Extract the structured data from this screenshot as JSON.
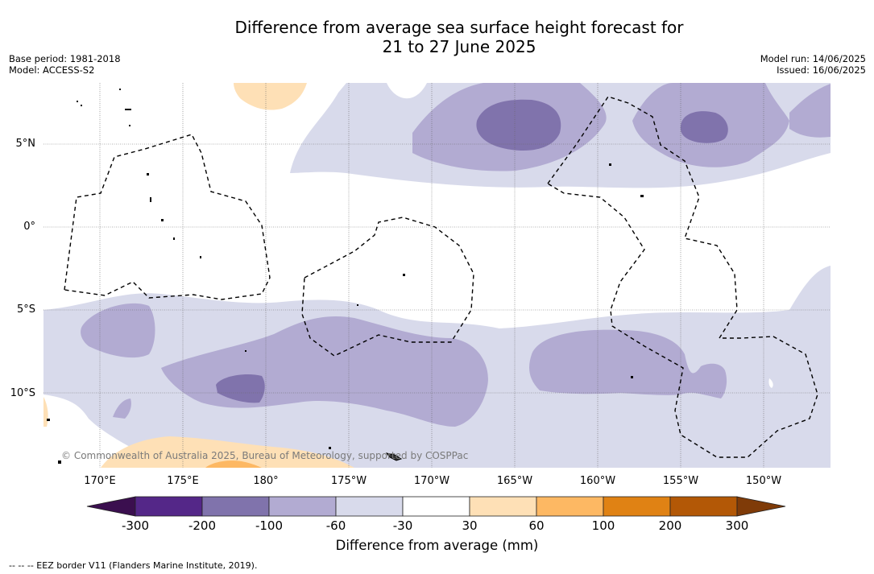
{
  "title": "Difference from average sea surface height forecast for",
  "subtitle": "21 to 27 June 2025",
  "meta": {
    "base_period": "Base period: 1981-2018",
    "model": "Model: ACCESS-S2",
    "model_run": "Model run: 14/06/2025",
    "issued": "Issued: 16/06/2025"
  },
  "lat_labels": [
    "5°N",
    "0°",
    "5°S",
    "10°S"
  ],
  "lon_labels": [
    "170°E",
    "175°E",
    "180°",
    "175°W",
    "170°W",
    "165°W",
    "160°W",
    "155°W",
    "150°W"
  ],
  "colorbar": {
    "ticks": [
      "-300",
      "-200",
      "-100",
      "-60",
      "-30",
      "30",
      "60",
      "100",
      "200",
      "300"
    ],
    "colors": [
      "#3b0f4f",
      "#542788",
      "#8073ac",
      "#b2abd2",
      "#d8daeb",
      "#ffffff",
      "#fee0b6",
      "#fdb863",
      "#e08214",
      "#b35806",
      "#7f3b08"
    ],
    "label": "Difference from average (mm)"
  },
  "copyright": "© Commonwealth of Australia 2025, Bureau of Meteorology, supported by COSPPac",
  "footnote": "-- -- -- EEZ border V11 (Flanders Marine Institute, 2019)."
}
